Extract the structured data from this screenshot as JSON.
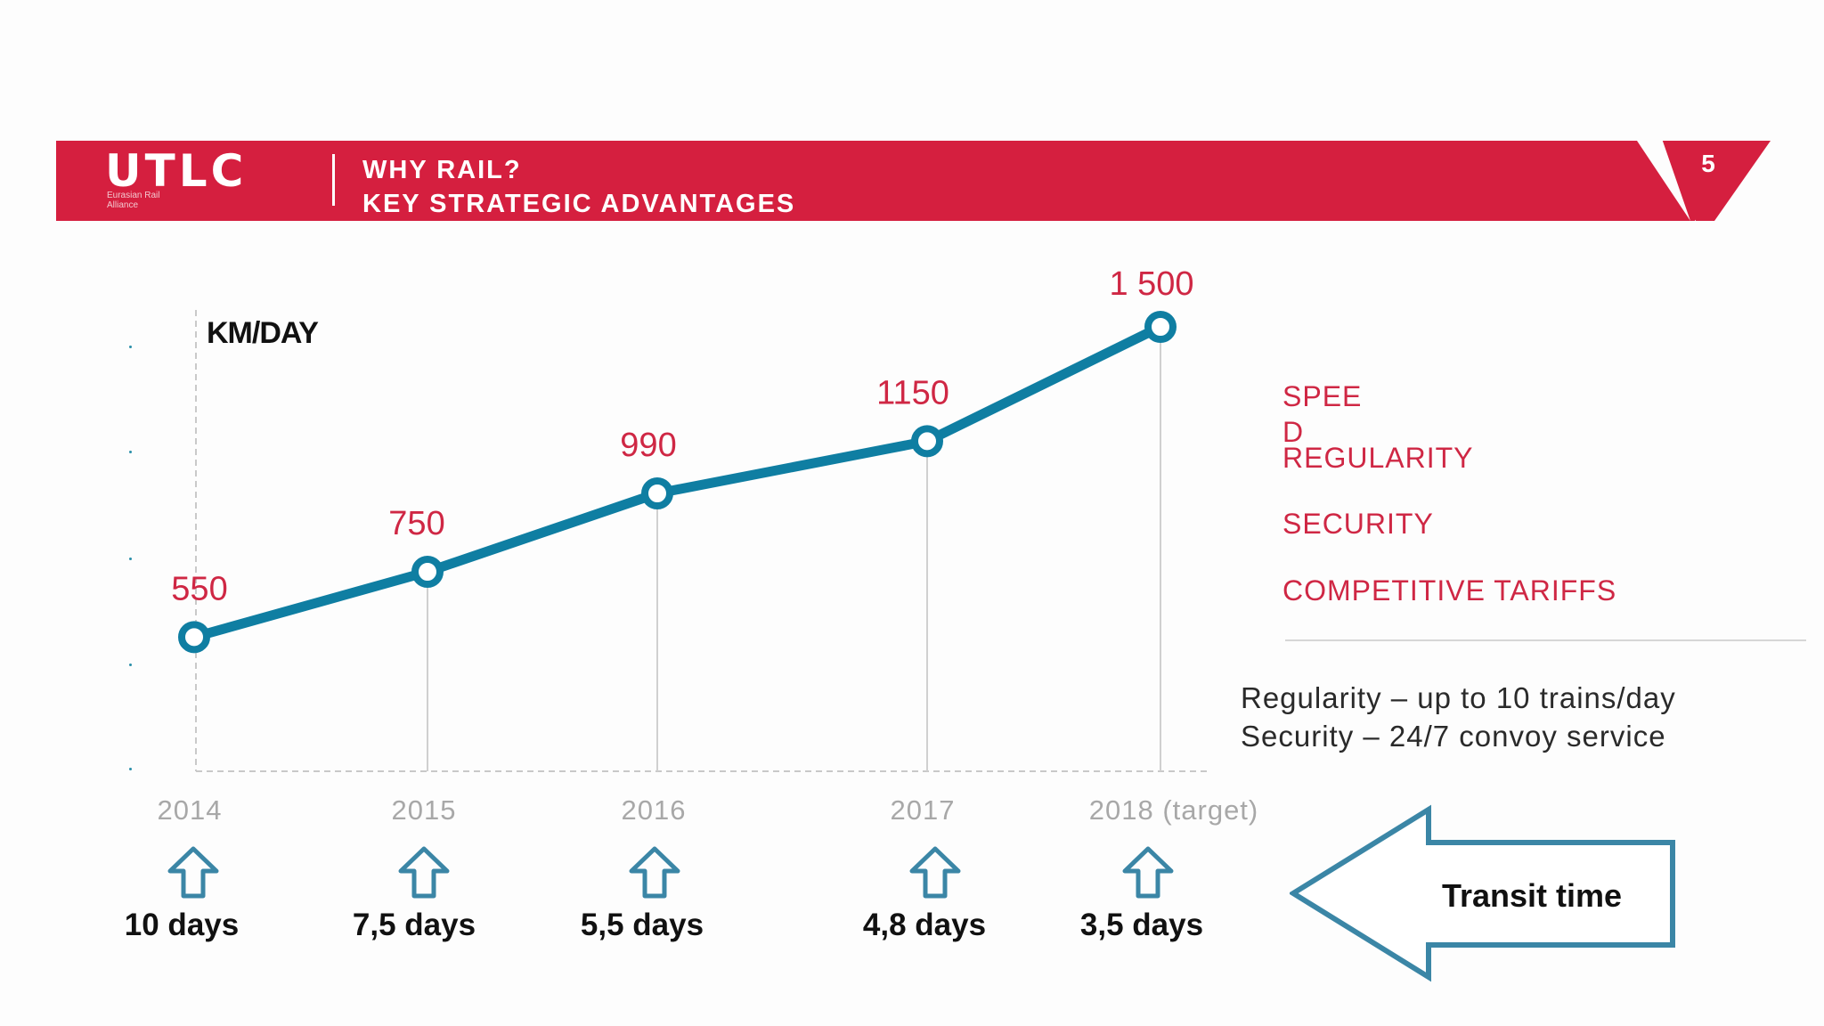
{
  "header": {
    "logo_text": "UTLC",
    "logo_subtext": "Eurasian Rail Alliance",
    "title_line1": "WHY RAIL?",
    "title_line2": "KEY STRATEGIC  ADVANTAGES",
    "page_number": "5"
  },
  "chart_data": {
    "type": "line",
    "title": "",
    "ylabel": "KM/DAY",
    "categories": [
      "2014",
      "2015",
      "2016",
      "2017",
      "2018 (target)"
    ],
    "values": [
      550,
      750,
      990,
      1150,
      1500
    ],
    "data_labels": [
      "550",
      "750",
      "990",
      "1150",
      "1 500"
    ],
    "ylim": [
      150,
      1500
    ],
    "series_color": "#0f7ea2",
    "label_color": "#cf2744"
  },
  "transit": {
    "label": "Transit time",
    "days": [
      "10 days",
      "7,5 days",
      "5,5 days",
      "4,8 days",
      "3,5 days"
    ]
  },
  "advantages": [
    "SPEED",
    "REGULARITY",
    "SECURITY",
    "COMPETITIVE TARIFFS"
  ],
  "info_lines": [
    "Regularity – up to 10 trains/day",
    "Security – 24/7 convoy service"
  ],
  "colors": {
    "brand_red": "#d51f3f",
    "line_blue": "#0f7ea2",
    "arrow_blue": "#3b86a6"
  }
}
